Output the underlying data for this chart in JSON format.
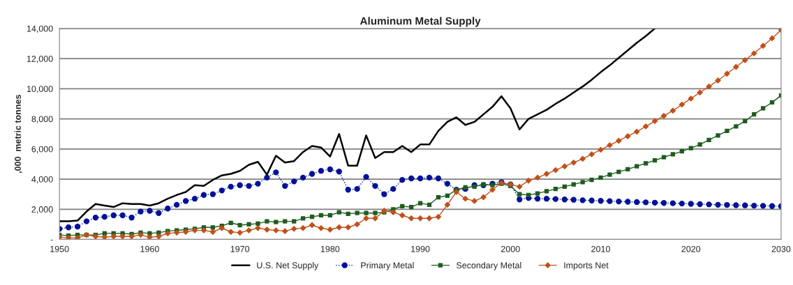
{
  "chart_data": {
    "type": "line",
    "title": "Aluminum Metal Supply",
    "ylabel": ",000  metric tonnes",
    "x": [
      1950,
      1951,
      1952,
      1953,
      1954,
      1955,
      1956,
      1957,
      1958,
      1959,
      1960,
      1961,
      1962,
      1963,
      1964,
      1965,
      1966,
      1967,
      1968,
      1969,
      1970,
      1971,
      1972,
      1973,
      1974,
      1975,
      1976,
      1977,
      1978,
      1979,
      1980,
      1981,
      1982,
      1983,
      1984,
      1985,
      1986,
      1987,
      1988,
      1989,
      1990,
      1991,
      1992,
      1993,
      1994,
      1995,
      1996,
      1997,
      1998,
      1999,
      2000,
      2001,
      2002,
      2003,
      2004,
      2005,
      2006,
      2007,
      2008,
      2009,
      2010,
      2011,
      2012,
      2013,
      2014,
      2015,
      2016,
      2017,
      2018,
      2019,
      2020,
      2021,
      2022,
      2023,
      2024,
      2025,
      2026,
      2027,
      2028,
      2029,
      2030
    ],
    "series": [
      {
        "name": "U.S. Net Supply",
        "color": "#000000",
        "marker": "none",
        "line_style": "solid",
        "values": [
          1200,
          1200,
          1250,
          1850,
          2350,
          2250,
          2150,
          2400,
          2350,
          2350,
          2250,
          2400,
          2700,
          2950,
          3150,
          3600,
          3550,
          3950,
          4250,
          4350,
          4550,
          4950,
          5150,
          4300,
          5550,
          5100,
          5200,
          5800,
          6200,
          6100,
          5500,
          7000,
          4900,
          4900,
          6900,
          5400,
          5800,
          5800,
          6200,
          5800,
          6300,
          6300,
          7200,
          7800,
          8100,
          7600,
          7800,
          8300,
          8800,
          9500,
          8700,
          7300,
          8000,
          8300,
          8600,
          9000,
          9350,
          9750,
          10150,
          10600,
          11100,
          11550,
          12050,
          12550,
          13050,
          13500,
          14000,
          null,
          null,
          null,
          null,
          null,
          null,
          null,
          null,
          null,
          null,
          null,
          null,
          null,
          null
        ]
      },
      {
        "name": "Primary Metal",
        "color": "#00129a",
        "marker": "circle",
        "line_style": "dotted",
        "values": [
          700,
          800,
          850,
          1200,
          1450,
          1500,
          1600,
          1600,
          1450,
          1850,
          1900,
          1750,
          2050,
          2300,
          2550,
          2700,
          2950,
          3000,
          3250,
          3500,
          3600,
          3550,
          3700,
          4100,
          4450,
          3550,
          3850,
          4100,
          4350,
          4550,
          4650,
          4500,
          3300,
          3350,
          4150,
          3550,
          3000,
          3350,
          3950,
          4050,
          4050,
          4100,
          4050,
          3700,
          3300,
          3350,
          3600,
          3600,
          3700,
          3800,
          3650,
          2650,
          2750,
          2700,
          2700,
          2680,
          2650,
          2630,
          2600,
          2580,
          2560,
          2540,
          2520,
          2500,
          2480,
          2460,
          2440,
          2420,
          2400,
          2380,
          2360,
          2340,
          2320,
          2300,
          2290,
          2270,
          2260,
          2240,
          2230,
          2210,
          2200
        ]
      },
      {
        "name": "Secondary Metal",
        "color": "#1e5c1e",
        "marker": "square",
        "line_style": "solid",
        "values": [
          300,
          250,
          300,
          300,
          300,
          400,
          400,
          400,
          350,
          450,
          400,
          450,
          550,
          600,
          650,
          700,
          800,
          800,
          900,
          1100,
          950,
          1000,
          1050,
          1200,
          1150,
          1200,
          1200,
          1400,
          1500,
          1600,
          1600,
          1800,
          1700,
          1750,
          1750,
          1750,
          1800,
          2000,
          2200,
          2150,
          2400,
          2300,
          2800,
          2900,
          3300,
          3450,
          3500,
          3650,
          3600,
          3700,
          3550,
          3000,
          2950,
          3050,
          3200,
          3350,
          3500,
          3650,
          3800,
          3950,
          4100,
          4300,
          4480,
          4660,
          4850,
          5050,
          5250,
          5450,
          5650,
          5850,
          6060,
          6300,
          6600,
          6900,
          7200,
          7500,
          7850,
          8300,
          8700,
          9100,
          9550
        ]
      },
      {
        "name": "Imports Net",
        "color": "#c0501a",
        "marker": "diamond",
        "line_style": "solid",
        "values": [
          150,
          100,
          100,
          300,
          200,
          150,
          200,
          200,
          200,
          300,
          150,
          200,
          400,
          450,
          500,
          600,
          600,
          500,
          750,
          500,
          450,
          600,
          750,
          650,
          600,
          550,
          700,
          750,
          950,
          750,
          650,
          800,
          800,
          1000,
          1400,
          1400,
          1900,
          1800,
          1600,
          1400,
          1400,
          1400,
          1500,
          2300,
          3150,
          2700,
          2550,
          2800,
          3300,
          3750,
          3650,
          3500,
          3900,
          4100,
          4350,
          4600,
          4850,
          5100,
          5350,
          5650,
          5950,
          6250,
          6550,
          6850,
          7150,
          7500,
          7850,
          8200,
          8550,
          8950,
          9350,
          9750,
          10150,
          10550,
          11000,
          11450,
          11900,
          12350,
          12850,
          13350,
          13900
        ]
      }
    ],
    "xlim": [
      1950,
      2030
    ],
    "xticks": [
      1950,
      1960,
      1970,
      1980,
      1990,
      2000,
      2010,
      2020,
      2030
    ],
    "ylim": [
      0,
      14000
    ],
    "yticks": [
      {
        "value": 0,
        "label": "-"
      },
      {
        "value": 2000,
        "label": "2,000"
      },
      {
        "value": 4000,
        "label": "4,000"
      },
      {
        "value": 6000,
        "label": "6,000"
      },
      {
        "value": 8000,
        "label": "8,000"
      },
      {
        "value": 10000,
        "label": "10,000"
      },
      {
        "value": 12000,
        "label": "12,000"
      },
      {
        "value": 14000,
        "label": "14,000"
      }
    ],
    "grid": "y",
    "legend": "bottom"
  }
}
